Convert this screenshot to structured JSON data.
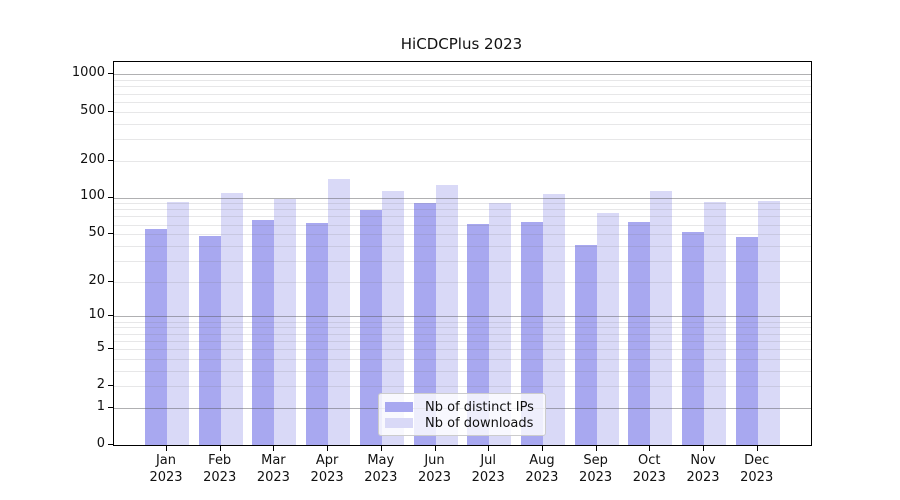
{
  "title": "HiCDCPlus 2023",
  "chart_data": {
    "type": "bar",
    "title": "HiCDCPlus 2023",
    "categories": [
      "Jan 2023",
      "Feb 2023",
      "Mar 2023",
      "Apr 2023",
      "May 2023",
      "Jun 2023",
      "Jul 2023",
      "Aug 2023",
      "Sep 2023",
      "Oct 2023",
      "Nov 2023",
      "Dec 2023"
    ],
    "series": [
      {
        "name": "Nb of distinct IPs",
        "color": "#a8a8f0",
        "values": [
          55,
          48,
          66,
          62,
          79,
          91,
          61,
          63,
          41,
          63,
          52,
          47
        ]
      },
      {
        "name": "Nb of downloads",
        "color": "#d9d9f7",
        "values": [
          92,
          108,
          97,
          141,
          112,
          127,
          90,
          106,
          74,
          112,
          92,
          94
        ]
      }
    ],
    "yscale": "log10(1+y)",
    "yticks": [
      0,
      1,
      2,
      5,
      10,
      20,
      50,
      100,
      200,
      500,
      1000
    ],
    "ylim": [
      0,
      1290
    ],
    "grid": true,
    "legend_position": "lower center",
    "colors": {
      "bar_distinct_ips": "#a8a8f0",
      "bar_downloads": "#d9d9f7",
      "grid_major": "#b0b0b0",
      "grid_minor": "#e6e6e6",
      "axis": "#000000"
    }
  }
}
